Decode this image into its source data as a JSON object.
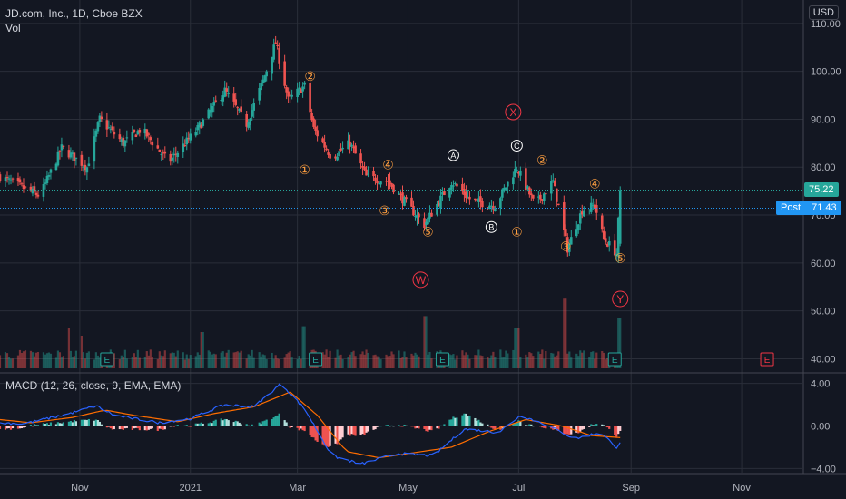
{
  "header": {
    "symbol_line": "JD.com, Inc., 1D, Cboe BZX",
    "vol_label": "Vol",
    "macd_label": "MACD (12, 26, close, 9, EMA, EMA)",
    "currency": "USD"
  },
  "colors": {
    "background": "#131722",
    "up": "#26a69a",
    "down": "#ef5350",
    "macd_line": "#2962ff",
    "signal_line": "#ff6d00",
    "last_price_tag": "#26a69a",
    "post_tag": "#2196f3",
    "wave_orange": "#ff9f40",
    "wave_white": "#ffffff",
    "wave_red": "#f23645"
  },
  "price_tags": {
    "last": {
      "value": "75.22"
    },
    "post": {
      "label": "Post",
      "value": "71.43"
    }
  },
  "chart_data": [
    {
      "type": "candlestick",
      "name": "price",
      "ylim": [
        38,
        113
      ],
      "y_ticks": [
        110,
        100,
        90,
        80,
        70,
        60,
        50,
        40
      ],
      "y_tick_labels": [
        "110.00",
        "100.00",
        "90.00",
        "80.00",
        "70.00",
        "60.00",
        "50.00",
        "40.00"
      ],
      "x_tick_labels": [
        "Nov",
        "2021",
        "Mar",
        "May",
        "Jul",
        "Sep",
        "Nov"
      ],
      "time_range": [
        "2020-09-18",
        "2021-12-05"
      ],
      "x_tick_dates": [
        "2020-11-01",
        "2021-01-01",
        "2021-03-01",
        "2021-05-01",
        "2021-07-01",
        "2021-09-01",
        "2021-11-01"
      ],
      "key_points": [
        {
          "date": "2020-09-18",
          "close": 78
        },
        {
          "date": "2020-10-10",
          "close": 74
        },
        {
          "date": "2020-10-22",
          "close": 84
        },
        {
          "date": "2020-11-05",
          "close": 80
        },
        {
          "date": "2020-11-12",
          "close": 90
        },
        {
          "date": "2020-11-25",
          "close": 85
        },
        {
          "date": "2020-12-05",
          "close": 88
        },
        {
          "date": "2020-12-20",
          "close": 81
        },
        {
          "date": "2021-01-05",
          "close": 88
        },
        {
          "date": "2021-01-20",
          "close": 96
        },
        {
          "date": "2021-02-01",
          "close": 89
        },
        {
          "date": "2021-02-10",
          "close": 98
        },
        {
          "date": "2021-02-17",
          "close": 106
        },
        {
          "date": "2021-02-24",
          "close": 94
        },
        {
          "date": "2021-03-05",
          "close": 97
        },
        {
          "date": "2021-03-10",
          "close": 88
        },
        {
          "date": "2021-03-20",
          "close": 82
        },
        {
          "date": "2021-03-30",
          "close": 85
        },
        {
          "date": "2021-04-08",
          "close": 78
        },
        {
          "date": "2021-04-20",
          "close": 77
        },
        {
          "date": "2021-05-01",
          "close": 72
        },
        {
          "date": "2021-05-10",
          "close": 68
        },
        {
          "date": "2021-05-25",
          "close": 77
        },
        {
          "date": "2021-06-05",
          "close": 73
        },
        {
          "date": "2021-06-18",
          "close": 72
        },
        {
          "date": "2021-06-30",
          "close": 80
        },
        {
          "date": "2021-07-10",
          "close": 72
        },
        {
          "date": "2021-07-20",
          "close": 77
        },
        {
          "date": "2021-07-28",
          "close": 63
        },
        {
          "date": "2021-08-05",
          "close": 71
        },
        {
          "date": "2021-08-12",
          "close": 72
        },
        {
          "date": "2021-08-17",
          "close": 65
        },
        {
          "date": "2021-08-24",
          "close": 62
        },
        {
          "date": "2021-08-26",
          "close": 75.22
        }
      ],
      "last_price": 75.22,
      "post_market_price": 71.43
    },
    {
      "type": "bar",
      "name": "volume",
      "note": "relative volume in 0-1 units of the volume pane height",
      "spikes": [
        {
          "date": "2020-10-25",
          "value": 0.55
        },
        {
          "date": "2020-11-01",
          "value": 0.45
        },
        {
          "date": "2021-01-08",
          "value": 0.5
        },
        {
          "date": "2021-03-05",
          "value": 0.58
        },
        {
          "date": "2021-05-10",
          "value": 0.72
        },
        {
          "date": "2021-06-30",
          "value": 0.56
        },
        {
          "date": "2021-07-26",
          "value": 0.96
        },
        {
          "date": "2021-08-26",
          "value": 0.7
        }
      ],
      "earnings_markers": [
        "2020-11-16",
        "2021-03-11",
        "2021-05-20",
        "2021-08-23",
        "2021-11-15"
      ]
    },
    {
      "type": "macd",
      "name": "MACD (12, 26, close, 9, EMA, EMA)",
      "ylim": [
        -4.4,
        4.4
      ],
      "y_ticks": [
        4,
        0,
        -4
      ],
      "y_tick_labels": [
        "4.00",
        "0.00",
        "−4.00"
      ],
      "macd_points": [
        {
          "date": "2020-09-18",
          "v": 0.3
        },
        {
          "date": "2020-10-01",
          "v": 0.2
        },
        {
          "date": "2020-10-25",
          "v": 1.1
        },
        {
          "date": "2020-11-10",
          "v": 1.9
        },
        {
          "date": "2020-11-20",
          "v": 1.0
        },
        {
          "date": "2020-12-15",
          "v": 0.3
        },
        {
          "date": "2021-01-01",
          "v": 0.7
        },
        {
          "date": "2021-01-20",
          "v": 2.0
        },
        {
          "date": "2021-02-05",
          "v": 1.8
        },
        {
          "date": "2021-02-20",
          "v": 4.0
        },
        {
          "date": "2021-03-05",
          "v": 1.6
        },
        {
          "date": "2021-03-20",
          "v": -2.8
        },
        {
          "date": "2021-04-05",
          "v": -3.6
        },
        {
          "date": "2021-04-25",
          "v": -2.6
        },
        {
          "date": "2021-05-15",
          "v": -2.8
        },
        {
          "date": "2021-06-01",
          "v": -0.3
        },
        {
          "date": "2021-06-20",
          "v": -0.6
        },
        {
          "date": "2021-07-02",
          "v": 1.0
        },
        {
          "date": "2021-07-15",
          "v": 0.2
        },
        {
          "date": "2021-08-01",
          "v": -1.2
        },
        {
          "date": "2021-08-15",
          "v": -0.6
        },
        {
          "date": "2021-08-24",
          "v": -2.0
        },
        {
          "date": "2021-08-26",
          "v": -1.5
        }
      ],
      "signal_points": [
        {
          "date": "2020-09-18",
          "v": 0.6
        },
        {
          "date": "2020-10-05",
          "v": 0.3
        },
        {
          "date": "2020-10-28",
          "v": 0.8
        },
        {
          "date": "2020-11-15",
          "v": 1.5
        },
        {
          "date": "2020-12-01",
          "v": 1.0
        },
        {
          "date": "2020-12-25",
          "v": 0.4
        },
        {
          "date": "2021-01-15",
          "v": 1.2
        },
        {
          "date": "2021-02-05",
          "v": 1.8
        },
        {
          "date": "2021-02-25",
          "v": 3.2
        },
        {
          "date": "2021-03-12",
          "v": 1.0
        },
        {
          "date": "2021-03-28",
          "v": -2.4
        },
        {
          "date": "2021-04-15",
          "v": -3.0
        },
        {
          "date": "2021-05-05",
          "v": -2.5
        },
        {
          "date": "2021-05-25",
          "v": -2.0
        },
        {
          "date": "2021-06-15",
          "v": -0.5
        },
        {
          "date": "2021-07-05",
          "v": 0.6
        },
        {
          "date": "2021-07-25",
          "v": 0.0
        },
        {
          "date": "2021-08-10",
          "v": -0.9
        },
        {
          "date": "2021-08-26",
          "v": -1.1
        }
      ]
    }
  ],
  "wave_labels": [
    {
      "text": "①",
      "color": "orange",
      "date": "2021-03-05",
      "price": 79.5
    },
    {
      "text": "②",
      "color": "orange",
      "date": "2021-03-08",
      "price": 99.0
    },
    {
      "text": "③",
      "color": "orange",
      "date": "2021-04-18",
      "price": 71.0
    },
    {
      "text": "④",
      "color": "orange",
      "date": "2021-04-20",
      "price": 80.5
    },
    {
      "text": "⑤",
      "color": "orange",
      "date": "2021-05-12",
      "price": 66.5
    },
    {
      "text": "W",
      "color": "red",
      "date": "2021-05-08",
      "price": 56.5
    },
    {
      "text": "A",
      "color": "white",
      "date": "2021-05-26",
      "price": 82.5
    },
    {
      "text": "B",
      "color": "white",
      "date": "2021-06-16",
      "price": 67.5
    },
    {
      "text": "C",
      "color": "white",
      "date": "2021-06-30",
      "price": 84.5
    },
    {
      "text": "X",
      "color": "red",
      "date": "2021-06-28",
      "price": 91.5
    },
    {
      "text": "①",
      "color": "orange",
      "date": "2021-06-30",
      "price": 66.5
    },
    {
      "text": "②",
      "color": "orange",
      "date": "2021-07-14",
      "price": 81.5
    },
    {
      "text": "③",
      "color": "orange",
      "date": "2021-07-27",
      "price": 63.5
    },
    {
      "text": "④",
      "color": "orange",
      "date": "2021-08-12",
      "price": 76.5
    },
    {
      "text": "⑤",
      "color": "orange",
      "date": "2021-08-26",
      "price": 61.0
    },
    {
      "text": "Y",
      "color": "red",
      "date": "2021-08-26",
      "price": 52.5
    }
  ]
}
